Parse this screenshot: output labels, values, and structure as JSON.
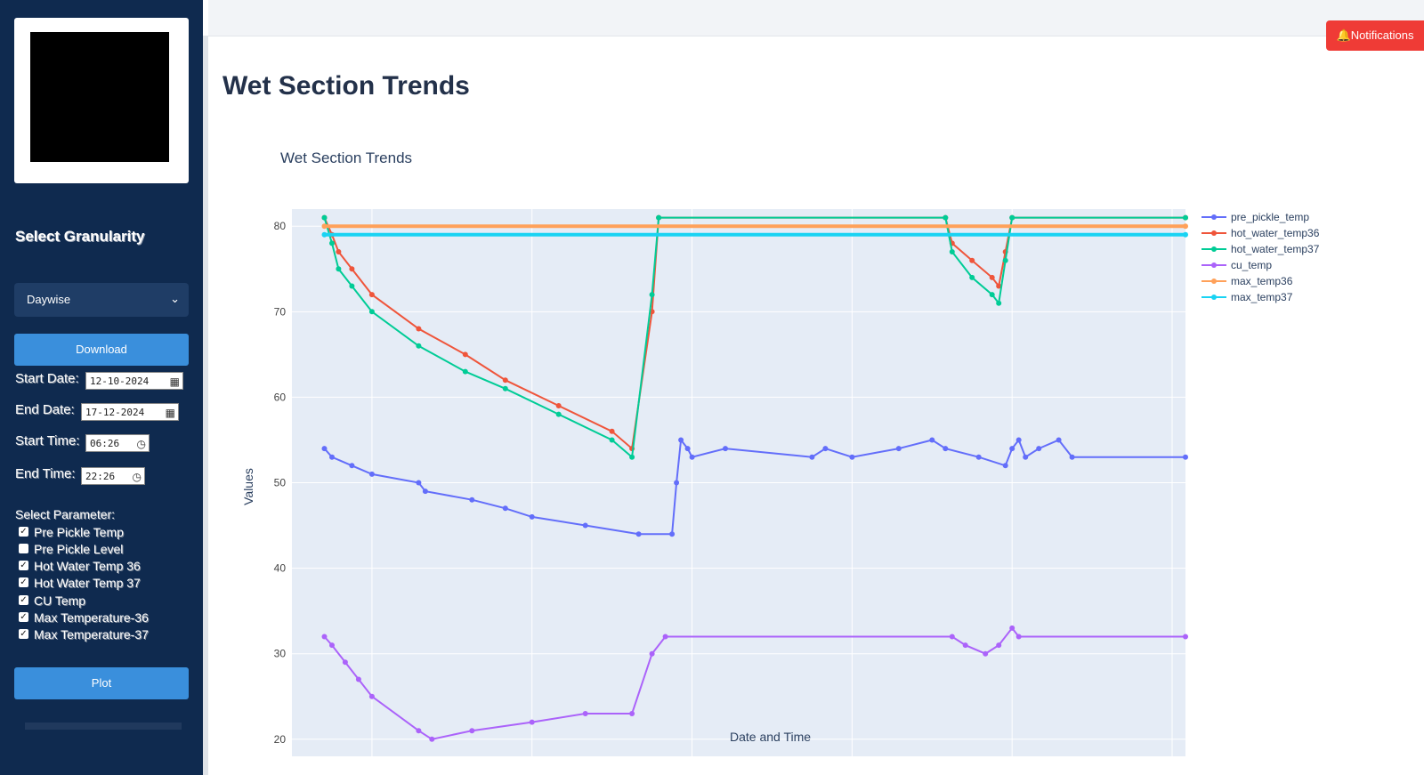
{
  "sidebar": {
    "granularity_title": "Select Granularity",
    "granularity_value": "Daywise",
    "download_label": "Download",
    "start_date_label": "Start Date:",
    "start_date_value": "12-10-2024",
    "end_date_label": "End Date:",
    "end_date_value": "17-12-2024",
    "start_time_label": "Start Time:",
    "start_time_value": "06:26",
    "end_time_label": "End Time:",
    "end_time_value": "22:26",
    "parameter_label": "Select Parameter:",
    "parameters": [
      {
        "label": "Pre Pickle Temp",
        "checked": true
      },
      {
        "label": "Pre Pickle Level",
        "checked": false
      },
      {
        "label": "Hot Water Temp 36",
        "checked": true
      },
      {
        "label": "Hot Water Temp 37",
        "checked": true
      },
      {
        "label": "CU Temp",
        "checked": true
      },
      {
        "label": "Max Temperature-36",
        "checked": true
      },
      {
        "label": "Max Temperature-37",
        "checked": true
      }
    ],
    "plot_label": "Plot"
  },
  "header": {
    "notifications_label": "Notifications",
    "page_title": "Wet Section Trends"
  },
  "chart_data": {
    "type": "line",
    "title": "Wet Section Trends",
    "xlabel": "Date and Time",
    "ylabel": "Values",
    "xlim": [
      "2024-10-12 06:00:00",
      "2024-10-15 01:00:00"
    ],
    "ylim": [
      18,
      82
    ],
    "y_ticks": [
      20,
      30,
      40,
      50,
      60,
      70,
      80
    ],
    "x_ticks": [
      "2024-10-12 12:00:00",
      "2024-10-13 00:00:00",
      "2024-10-13 12:00:00",
      "2024-10-14 00:00:00",
      "2024-10-14 12:00:00",
      "2024-10-15 00:00:00"
    ],
    "grid": true,
    "legend_position": "right",
    "series": [
      {
        "name": "pre_pickle_temp",
        "color": "#636efa",
        "points": [
          [
            "2024-10-12 08:26:00",
            54
          ],
          [
            "2024-10-12 09:00:00",
            53
          ],
          [
            "2024-10-12 10:30:00",
            52
          ],
          [
            "2024-10-12 12:00:00",
            51
          ],
          [
            "2024-10-12 15:30:00",
            50
          ],
          [
            "2024-10-12 16:00:00",
            49
          ],
          [
            "2024-10-12 19:30:00",
            48
          ],
          [
            "2024-10-12 22:00:00",
            47
          ],
          [
            "2024-10-13 00:00:00",
            46
          ],
          [
            "2024-10-13 04:00:00",
            45
          ],
          [
            "2024-10-13 08:00:00",
            44
          ],
          [
            "2024-10-13 10:30:00",
            44
          ],
          [
            "2024-10-13 10:50:00",
            50
          ],
          [
            "2024-10-13 11:10:00",
            55
          ],
          [
            "2024-10-13 11:40:00",
            54
          ],
          [
            "2024-10-13 12:00:00",
            53
          ],
          [
            "2024-10-13 14:30:00",
            54
          ],
          [
            "2024-10-13 21:00:00",
            53
          ],
          [
            "2024-10-13 22:00:00",
            54
          ],
          [
            "2024-10-14 00:00:00",
            53
          ],
          [
            "2024-10-14 03:30:00",
            54
          ],
          [
            "2024-10-14 06:00:00",
            55
          ],
          [
            "2024-10-14 07:00:00",
            54
          ],
          [
            "2024-10-14 09:30:00",
            53
          ],
          [
            "2024-10-14 11:30:00",
            52
          ],
          [
            "2024-10-14 12:00:00",
            54
          ],
          [
            "2024-10-14 12:30:00",
            55
          ],
          [
            "2024-10-14 13:00:00",
            53
          ],
          [
            "2024-10-14 14:00:00",
            54
          ],
          [
            "2024-10-14 15:30:00",
            55
          ],
          [
            "2024-10-14 16:30:00",
            53
          ],
          [
            "2024-10-15 01:00:00",
            53
          ]
        ]
      },
      {
        "name": "hot_water_temp36",
        "color": "#ef553b",
        "points": [
          [
            "2024-10-12 08:26:00",
            81
          ],
          [
            "2024-10-12 09:00:00",
            79
          ],
          [
            "2024-10-12 09:30:00",
            77
          ],
          [
            "2024-10-12 10:30:00",
            75
          ],
          [
            "2024-10-12 12:00:00",
            72
          ],
          [
            "2024-10-12 15:30:00",
            68
          ],
          [
            "2024-10-12 19:00:00",
            65
          ],
          [
            "2024-10-12 22:00:00",
            62
          ],
          [
            "2024-10-13 02:00:00",
            59
          ],
          [
            "2024-10-13 06:00:00",
            56
          ],
          [
            "2024-10-13 07:30:00",
            54
          ],
          [
            "2024-10-13 09:00:00",
            70
          ],
          [
            "2024-10-13 09:30:00",
            81
          ],
          [
            "2024-10-14 07:00:00",
            81
          ],
          [
            "2024-10-14 07:30:00",
            78
          ],
          [
            "2024-10-14 09:00:00",
            76
          ],
          [
            "2024-10-14 10:30:00",
            74
          ],
          [
            "2024-10-14 11:00:00",
            73
          ],
          [
            "2024-10-14 11:30:00",
            77
          ],
          [
            "2024-10-14 12:00:00",
            81
          ],
          [
            "2024-10-15 01:00:00",
            81
          ]
        ]
      },
      {
        "name": "hot_water_temp37",
        "color": "#00cc96",
        "points": [
          [
            "2024-10-12 08:26:00",
            81
          ],
          [
            "2024-10-12 09:00:00",
            78
          ],
          [
            "2024-10-12 09:30:00",
            75
          ],
          [
            "2024-10-12 10:30:00",
            73
          ],
          [
            "2024-10-12 12:00:00",
            70
          ],
          [
            "2024-10-12 15:30:00",
            66
          ],
          [
            "2024-10-12 19:00:00",
            63
          ],
          [
            "2024-10-12 22:00:00",
            61
          ],
          [
            "2024-10-13 02:00:00",
            58
          ],
          [
            "2024-10-13 06:00:00",
            55
          ],
          [
            "2024-10-13 07:30:00",
            53
          ],
          [
            "2024-10-13 09:00:00",
            72
          ],
          [
            "2024-10-13 09:30:00",
            81
          ],
          [
            "2024-10-14 07:00:00",
            81
          ],
          [
            "2024-10-14 07:30:00",
            77
          ],
          [
            "2024-10-14 09:00:00",
            74
          ],
          [
            "2024-10-14 10:30:00",
            72
          ],
          [
            "2024-10-14 11:00:00",
            71
          ],
          [
            "2024-10-14 11:30:00",
            76
          ],
          [
            "2024-10-14 12:00:00",
            81
          ],
          [
            "2024-10-15 01:00:00",
            81
          ]
        ]
      },
      {
        "name": "cu_temp",
        "color": "#ab63fa",
        "points": [
          [
            "2024-10-12 08:26:00",
            32
          ],
          [
            "2024-10-12 09:00:00",
            31
          ],
          [
            "2024-10-12 10:00:00",
            29
          ],
          [
            "2024-10-12 11:00:00",
            27
          ],
          [
            "2024-10-12 12:00:00",
            25
          ],
          [
            "2024-10-12 15:30:00",
            21
          ],
          [
            "2024-10-12 16:30:00",
            20
          ],
          [
            "2024-10-12 19:30:00",
            21
          ],
          [
            "2024-10-13 00:00:00",
            22
          ],
          [
            "2024-10-13 04:00:00",
            23
          ],
          [
            "2024-10-13 07:30:00",
            23
          ],
          [
            "2024-10-13 09:00:00",
            30
          ],
          [
            "2024-10-13 10:00:00",
            32
          ],
          [
            "2024-10-14 07:30:00",
            32
          ],
          [
            "2024-10-14 08:30:00",
            31
          ],
          [
            "2024-10-14 10:00:00",
            30
          ],
          [
            "2024-10-14 11:00:00",
            31
          ],
          [
            "2024-10-14 12:00:00",
            33
          ],
          [
            "2024-10-14 12:30:00",
            32
          ],
          [
            "2024-10-15 01:00:00",
            32
          ]
        ]
      },
      {
        "name": "max_temp36",
        "color": "#ffa15a",
        "points": [
          [
            "2024-10-12 08:26:00",
            80
          ],
          [
            "2024-10-15 01:00:00",
            80
          ]
        ]
      },
      {
        "name": "max_temp37",
        "color": "#19d3f3",
        "points": [
          [
            "2024-10-12 08:26:00",
            79
          ],
          [
            "2024-10-15 01:00:00",
            79
          ]
        ]
      }
    ]
  }
}
